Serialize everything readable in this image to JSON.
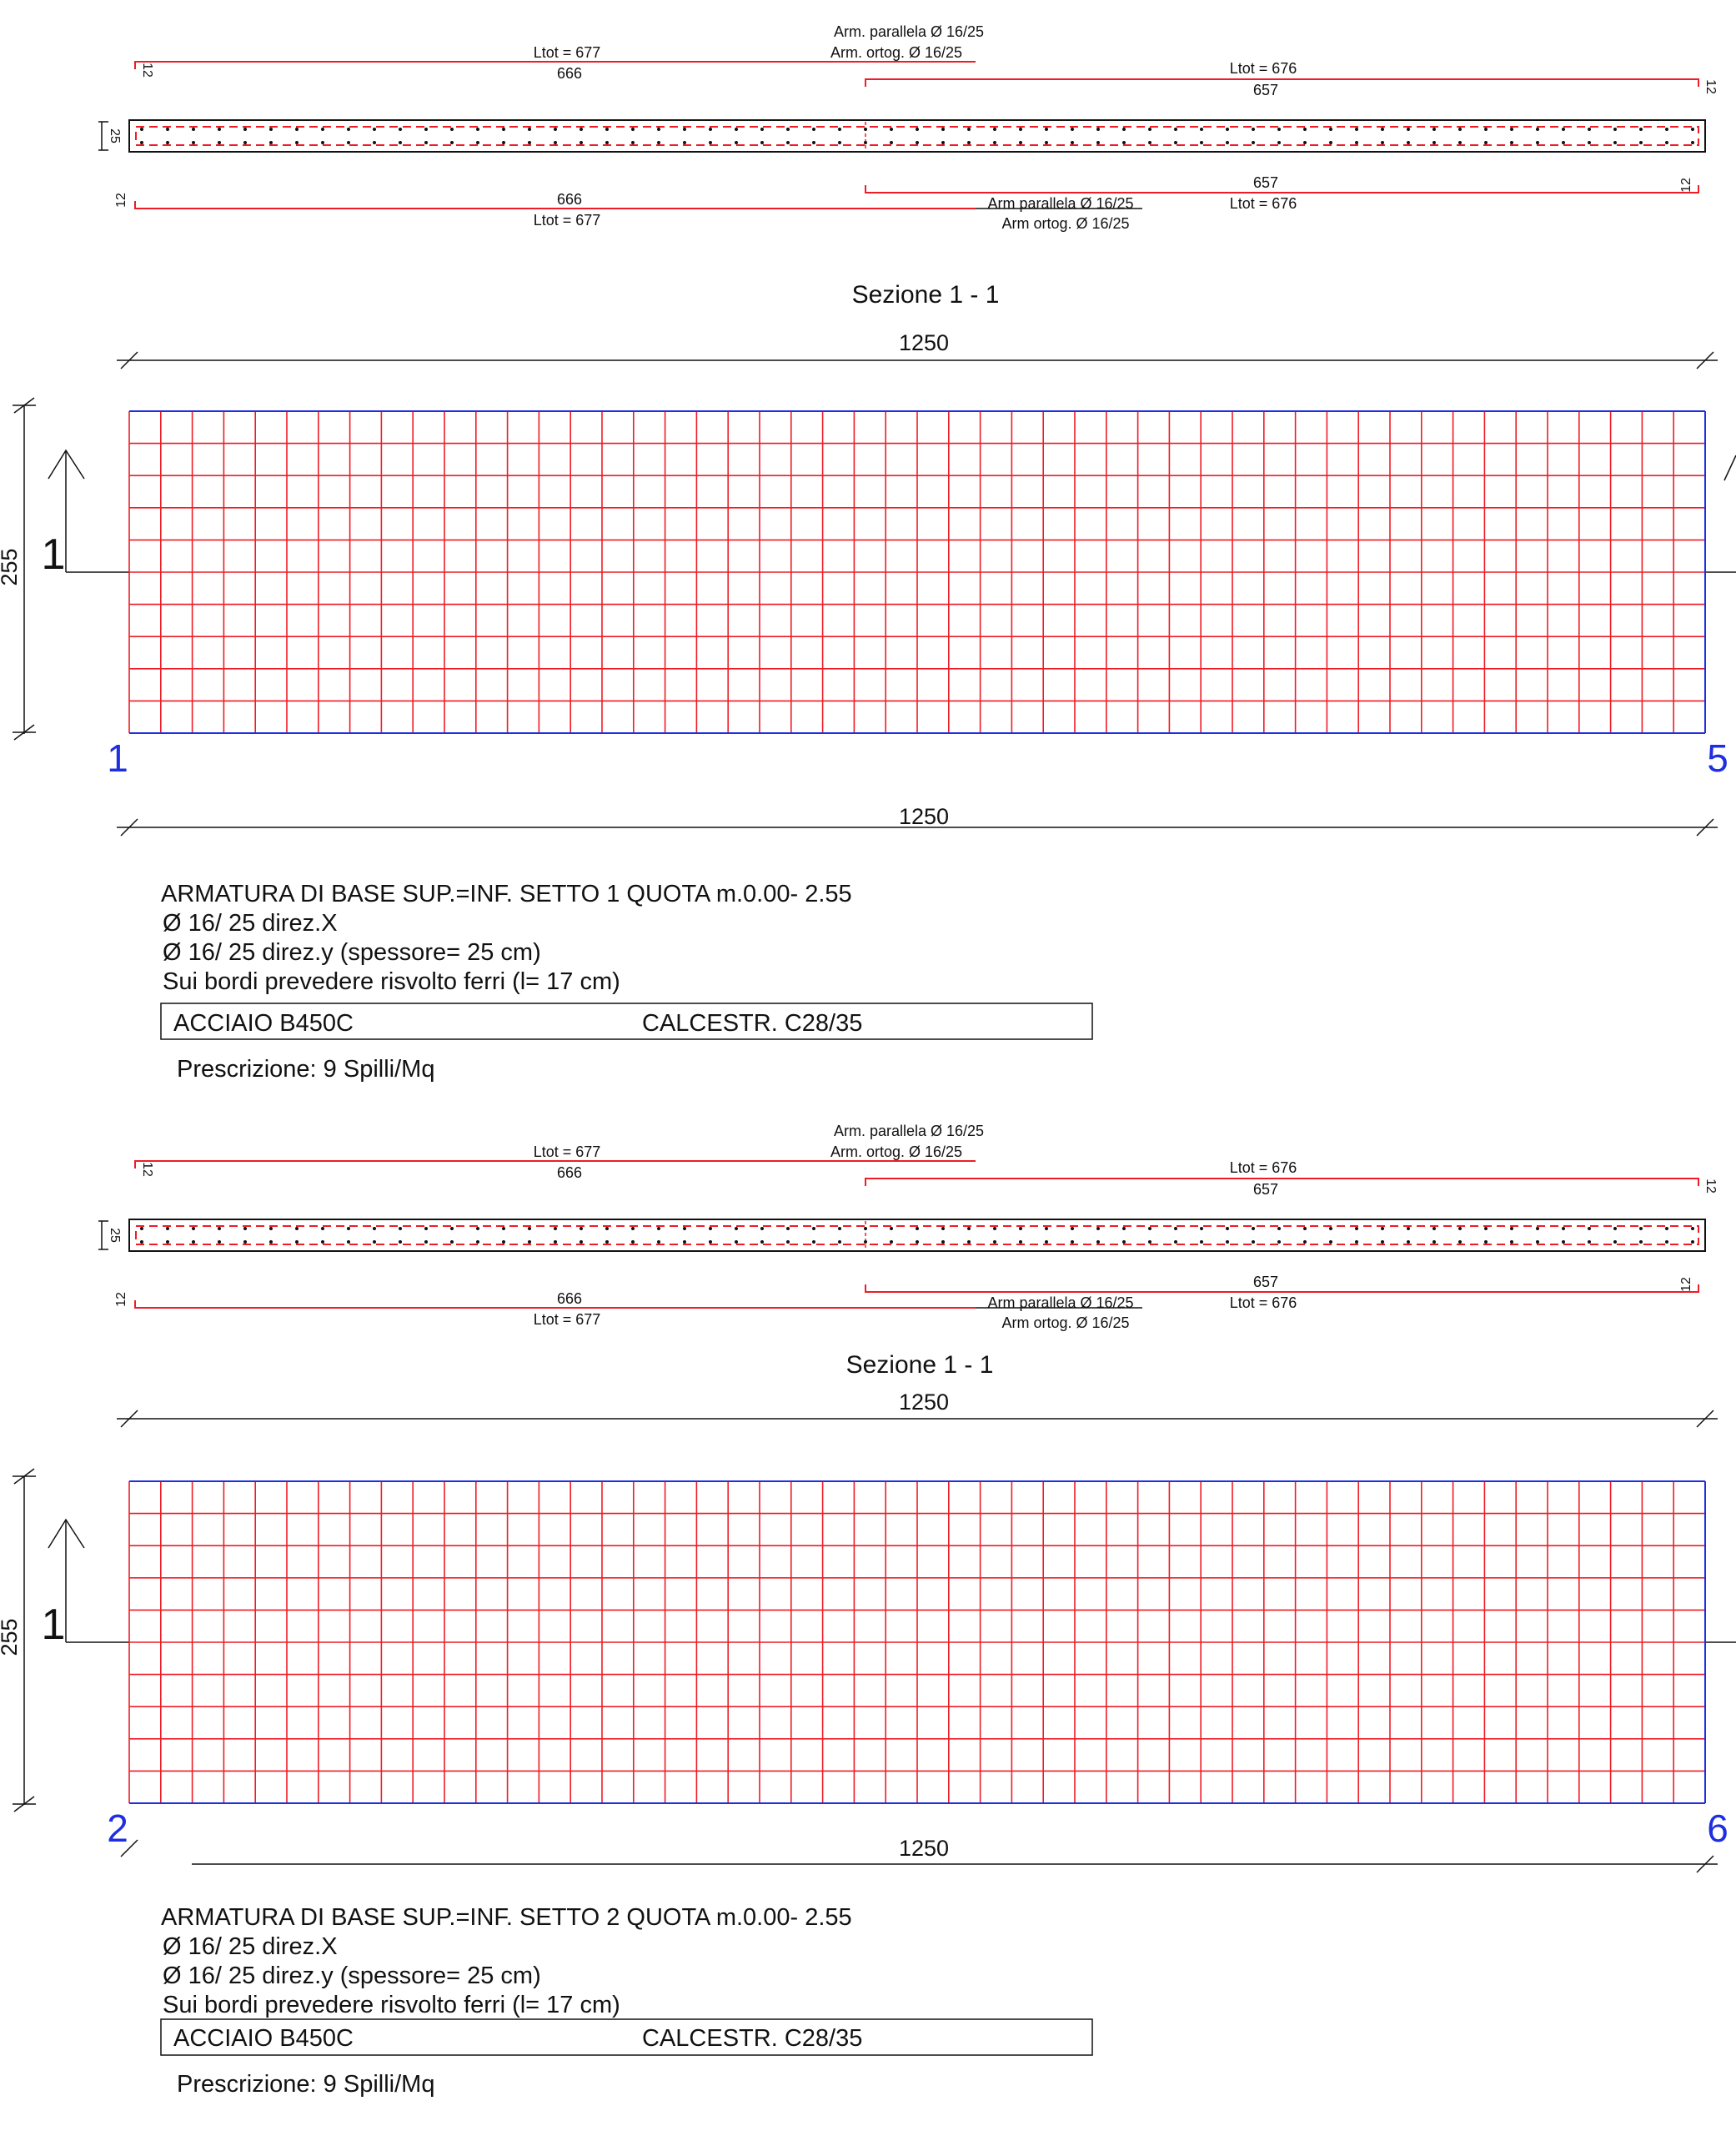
{
  "colors": {
    "rebar": "#ee1c25",
    "axis": "#1f2fe0",
    "ink": "#111111",
    "bg": "#ffffff"
  },
  "panels": [
    {
      "section": {
        "arm_parallela_top": "Arm. parallela Ø 16/25",
        "arm_ortog_top": "Arm. ortog. Ø 16/25",
        "ltot_left": "Ltot = 677",
        "len_left": "666",
        "ltot_right": "Ltot = 676",
        "len_right": "657",
        "hook": "12",
        "thickness": "25",
        "arm_parallela_bot": "Arm parallela Ø 16/25",
        "arm_ortog_bot": "Arm ortog. Ø 16/25"
      },
      "title": "Sezione 1 - 1",
      "dim_top": "1250",
      "dim_height": "255",
      "section_mark": "1",
      "axis_left": "1",
      "axis_right": "5",
      "dim_bottom": "1250",
      "notes": {
        "line1": "ARMATURA DI BASE SUP.=INF. SETTO 1 QUOTA m.0.00- 2.55",
        "line2": "Ø 16/ 25 direz.X",
        "line3": "Ø 16/ 25 direz.y (spessore= 25 cm)",
        "line4": "Sui bordi prevedere risvolto ferri (l= 17 cm)",
        "steel": "ACCIAIO  B450C",
        "concrete": "CALCESTR. C28/35",
        "prescr": "Prescrizione: 9 Spilli/Mq"
      }
    },
    {
      "section": {
        "arm_parallela_top": "Arm. parallela Ø 16/25",
        "arm_ortog_top": "Arm. ortog. Ø 16/25",
        "ltot_left": "Ltot = 677",
        "len_left": "666",
        "ltot_right": "Ltot = 676",
        "len_right": "657",
        "hook": "12",
        "thickness": "25",
        "arm_parallela_bot": "Arm parallela Ø 16/25",
        "arm_ortog_bot": "Arm ortog. Ø 16/25"
      },
      "title": "Sezione 1 - 1",
      "dim_top": "1250",
      "dim_height": "255",
      "section_mark": "1",
      "axis_left": "2",
      "axis_right": "6",
      "dim_bottom": "1250",
      "notes": {
        "line1": "ARMATURA DI BASE SUP.=INF. SETTO 2 QUOTA m.0.00- 2.55",
        "line2": "Ø 16/ 25 direz.X",
        "line3": "Ø 16/ 25 direz.y (spessore= 25 cm)",
        "line4": "Sui bordi prevedere risvolto ferri (l= 17 cm)",
        "steel": "ACCIAIO  B450C",
        "concrete": "CALCESTR. C28/35",
        "prescr": "Prescrizione: 9 Spilli/Mq"
      }
    }
  ]
}
